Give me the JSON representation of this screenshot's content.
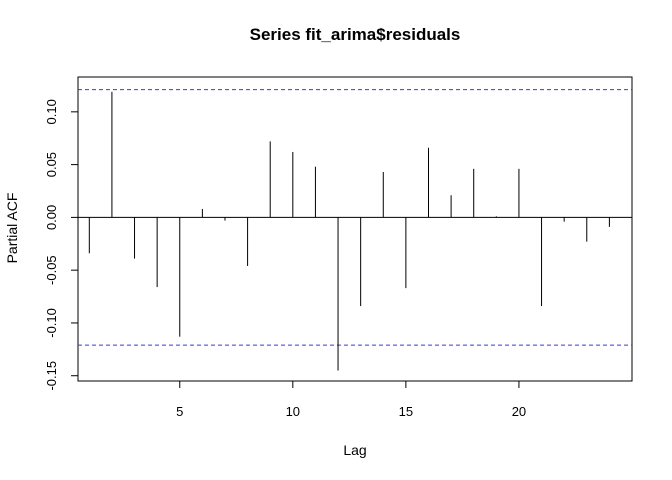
{
  "chart_data": {
    "type": "bar",
    "title": "Series  fit_arima$residuals",
    "xlabel": "Lag",
    "ylabel": "Partial ACF",
    "x": [
      1,
      2,
      3,
      4,
      5,
      6,
      7,
      8,
      9,
      10,
      11,
      12,
      13,
      14,
      15,
      16,
      17,
      18,
      19,
      20,
      21,
      22,
      23,
      24
    ],
    "values": [
      -0.034,
      0.119,
      -0.039,
      -0.066,
      -0.113,
      0.008,
      -0.003,
      -0.046,
      0.072,
      0.062,
      0.048,
      -0.145,
      -0.084,
      0.043,
      -0.067,
      0.066,
      0.021,
      0.046,
      0.001,
      0.046,
      -0.084,
      -0.004,
      -0.023,
      -0.009
    ],
    "confidence_bound": 0.121,
    "xlim": [
      0.5,
      25
    ],
    "ylim": [
      -0.155,
      0.133
    ],
    "x_ticks": [
      5,
      10,
      15,
      20
    ],
    "y_ticks": [
      -0.15,
      -0.1,
      -0.05,
      0.0,
      0.05,
      0.1
    ],
    "y_tick_labels": [
      "-0.15",
      "-0.10",
      "-0.05",
      "0.00",
      "0.05",
      "0.10"
    ],
    "grid": false,
    "colors": {
      "bars": "#000000",
      "zero_line": "#000000",
      "confidence_lines": "#3b3bdb"
    }
  }
}
